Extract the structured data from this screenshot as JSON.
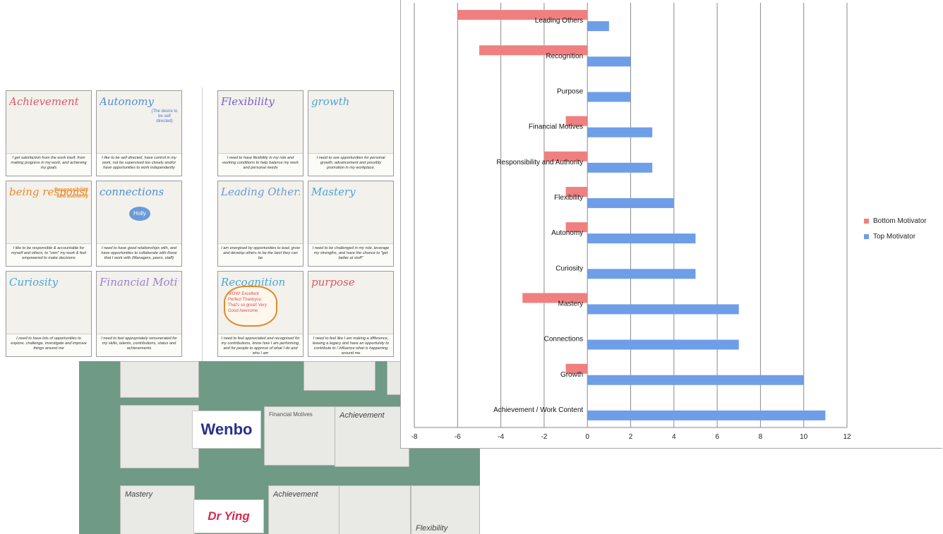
{
  "cards": [
    {
      "title": "Achievement",
      "caption": "I get satisfaction from the work itself, from making progress in my work, and achieving my goals"
    },
    {
      "title": "Autonomy",
      "note": "(The desire to be self directed)",
      "caption": "I like to be self directed, have control in my work, not be supervised too closely and/or have opportunities to work independently"
    },
    {
      "title": "Flexibility",
      "caption": "I need to have flexibility in my role and working conditions to help balance my work and personal needs"
    },
    {
      "title": "growth",
      "caption": "I need to see opportunities for personal growth, advancement and possibly promotion in my workplace."
    },
    {
      "title": "being responsible",
      "tag": "Responsibility and authority",
      "caption": "I like to be responsible & accountable for myself and others, to \"own\" my work & feel empowered to make decisions"
    },
    {
      "title": "connections",
      "center": "Holly",
      "caption": "I need to have good relationships with, and have opportunities to collaborate with those that I work with (Managers, peers, staff)"
    },
    {
      "title": "Leading Others",
      "caption": "I am energised by opportunities to lead, grow and develop others to be the best they can be"
    },
    {
      "title": "Mastery",
      "caption": "I need to be challenged in my role, leverage my strengths, and have the chance to \"get better at stuff\""
    },
    {
      "title": "Curiosity",
      "caption": "I need to have lots of opportunities to explore, challenge, investigate and improve things around me"
    },
    {
      "title": "Financial Motives",
      "caption": "I need to feel appropriately remunerated for my skills, talents, contributions, status and achievements"
    },
    {
      "title": "Recognition",
      "bubble": "WOW! Excellent Perfect Thankyou That's so great! Very Good Awesome",
      "caption": "I need to feel appreciated and recognised for my contributions, know how I am performing, and for people to approve of what I do and who I am"
    },
    {
      "title": "purpose",
      "caption": "I need to feel like I am making a difference, leaving a legacy and have an opportunity to contribute to / influence what is happening around me"
    }
  ],
  "photo": {
    "names": [
      "Wenbo",
      "Dr Ying"
    ],
    "card_titles": [
      "Achievement",
      "Financial Motives",
      "Mastery",
      "Achievement",
      "Flexibility"
    ]
  },
  "colors": {
    "bottom": "#f08080",
    "top": "#6e9ee8",
    "grid": "#8a8a8a"
  },
  "chart_data": {
    "type": "bar",
    "orientation": "horizontal",
    "categories": [
      "Leading Others",
      "Recognition",
      "Purpose",
      "Financial Motives",
      "Responsibility and Authority",
      "Flexibility",
      "Autonomy",
      "Curiosity",
      "Mastery",
      "Connections",
      "Growth",
      "Achievement / Work Content"
    ],
    "series": [
      {
        "name": "Bottom Motivator",
        "values": [
          -6,
          -5,
          0,
          -1,
          -2,
          -1,
          -1,
          0,
          -3,
          0,
          -1,
          0
        ]
      },
      {
        "name": "Top Motivator",
        "values": [
          1,
          2,
          2,
          3,
          3,
          4,
          5,
          5,
          7,
          7,
          10,
          11
        ]
      }
    ],
    "xlim": [
      -8,
      12
    ],
    "xticks": [
      "-8",
      "-6",
      "-4",
      "-2",
      "0",
      "2",
      "4",
      "6",
      "8",
      "10",
      "12"
    ],
    "legend_position": "right",
    "grid": true
  }
}
